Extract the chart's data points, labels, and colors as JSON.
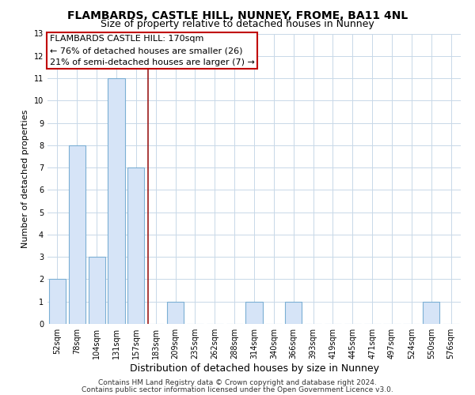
{
  "title": "FLAMBARDS, CASTLE HILL, NUNNEY, FROME, BA11 4NL",
  "subtitle": "Size of property relative to detached houses in Nunney",
  "xlabel": "Distribution of detached houses by size in Nunney",
  "ylabel": "Number of detached properties",
  "bin_labels": [
    "52sqm",
    "78sqm",
    "104sqm",
    "131sqm",
    "157sqm",
    "183sqm",
    "209sqm",
    "235sqm",
    "262sqm",
    "288sqm",
    "314sqm",
    "340sqm",
    "366sqm",
    "393sqm",
    "419sqm",
    "445sqm",
    "471sqm",
    "497sqm",
    "524sqm",
    "550sqm",
    "576sqm"
  ],
  "bar_values": [
    2,
    8,
    3,
    11,
    7,
    0,
    1,
    0,
    0,
    0,
    1,
    0,
    1,
    0,
    0,
    0,
    0,
    0,
    0,
    1,
    0
  ],
  "bar_color": "#d6e4f7",
  "bar_edge_color": "#7bafd4",
  "property_line_x": 4.6,
  "property_line_color": "#9b1a1a",
  "ylim": [
    0,
    13
  ],
  "yticks": [
    0,
    1,
    2,
    3,
    4,
    5,
    6,
    7,
    8,
    9,
    10,
    11,
    12,
    13
  ],
  "annotation_title": "FLAMBARDS CASTLE HILL: 170sqm",
  "annotation_line1": "← 76% of detached houses are smaller (26)",
  "annotation_line2": "21% of semi-detached houses are larger (7) →",
  "annotation_box_color": "#ffffff",
  "annotation_box_edge": "#c00000",
  "footer_line1": "Contains HM Land Registry data © Crown copyright and database right 2024.",
  "footer_line2": "Contains public sector information licensed under the Open Government Licence v3.0.",
  "title_fontsize": 10,
  "subtitle_fontsize": 9,
  "xlabel_fontsize": 9,
  "ylabel_fontsize": 8,
  "tick_fontsize": 7,
  "footer_fontsize": 6.5,
  "annotation_fontsize": 8,
  "background_color": "#ffffff",
  "grid_color": "#c8d8e8"
}
